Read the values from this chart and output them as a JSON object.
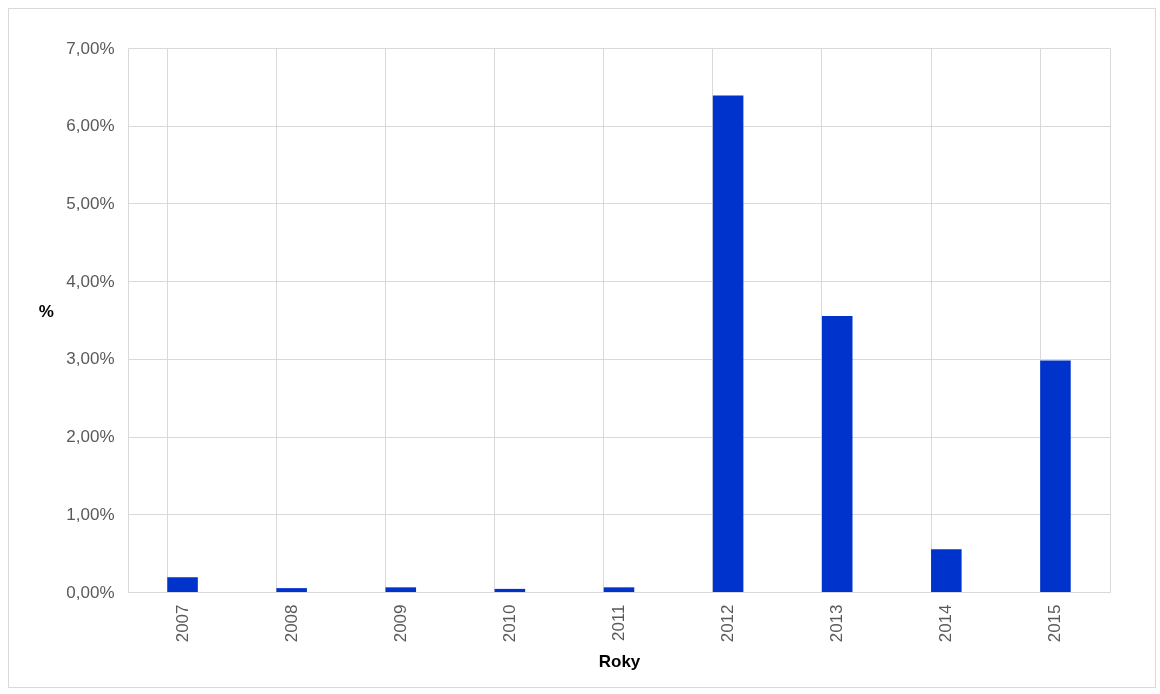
{
  "chart_data": {
    "type": "bar",
    "xlabel": "Roky",
    "ylabel": "%",
    "categories": [
      "2007",
      "2008",
      "2009",
      "2010",
      "2011",
      "2012",
      "2013",
      "2014",
      "2015"
    ],
    "values": [
      0.19,
      0.05,
      0.06,
      0.04,
      0.06,
      6.39,
      3.55,
      0.55,
      2.98
    ],
    "color": "#0033cc",
    "ylim": [
      0,
      7
    ],
    "yticks": [
      {
        "value": 0,
        "label": "0,00%"
      },
      {
        "value": 1,
        "label": "1,00%"
      },
      {
        "value": 2,
        "label": "2,00%"
      },
      {
        "value": 3,
        "label": "3,00%"
      },
      {
        "value": 4,
        "label": "4,00%"
      },
      {
        "value": 5,
        "label": "5,00%"
      },
      {
        "value": 6,
        "label": "6,00%"
      },
      {
        "value": 7,
        "label": "7,00%"
      }
    ],
    "grid": true
  }
}
